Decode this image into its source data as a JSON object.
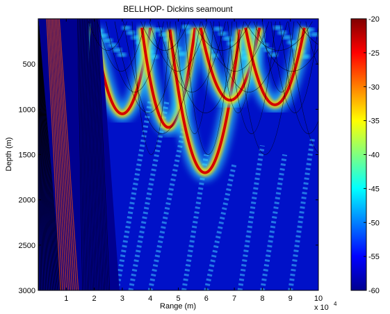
{
  "chart_data": {
    "type": "heatmap",
    "title": "BELLHOP- Dickins seamount",
    "xlabel": "Range (m)",
    "ylabel": "Depth (m)",
    "x_multiplier": "x 10",
    "x_multiplier_exponent": "4",
    "xlim": [
      0,
      100000
    ],
    "ylim": [
      0,
      3000
    ],
    "y_reversed": true,
    "x_ticks": [
      10000,
      20000,
      30000,
      40000,
      50000,
      60000,
      70000,
      80000,
      90000,
      100000
    ],
    "x_tick_labels": [
      "1",
      "2",
      "3",
      "4",
      "5",
      "6",
      "7",
      "8",
      "9",
      "10"
    ],
    "y_ticks": [
      500,
      1000,
      1500,
      2000,
      2500,
      3000
    ],
    "y_tick_labels": [
      "500",
      "1000",
      "1500",
      "2000",
      "2500",
      "3000"
    ],
    "colorbar": {
      "range": [
        -60,
        -20
      ],
      "ticks": [
        -20,
        -25,
        -30,
        -35,
        -40,
        -45,
        -50,
        -55,
        -60
      ],
      "tick_labels": [
        "-20",
        "-25",
        "-30",
        "-35",
        "-40",
        "-45",
        "-50",
        "-55",
        "-60"
      ],
      "colormap": "jet"
    },
    "seamount_profile": [
      [
        0,
        3000
      ],
      [
        6000,
        0
      ],
      [
        9000,
        0
      ],
      [
        13000,
        3000
      ],
      [
        19000,
        0
      ],
      [
        22000,
        0
      ],
      [
        29000,
        3000
      ]
    ],
    "convergence_arcs": [
      {
        "x_start": 20000,
        "x_end": 40000,
        "depth_min": 100,
        "depth_max": 1050
      },
      {
        "x_start": 37000,
        "x_end": 56000,
        "depth_min": 100,
        "depth_max": 1200
      },
      {
        "x_start": 47000,
        "x_end": 72000,
        "depth_min": 120,
        "depth_max": 1700
      },
      {
        "x_start": 58000,
        "x_end": 79000,
        "depth_min": 100,
        "depth_max": 900
      },
      {
        "x_start": 74000,
        "x_end": 95000,
        "depth_min": 100,
        "depth_max": 950
      }
    ],
    "colors": {
      "background": "#00008f",
      "high_intensity": "#c80000",
      "ray_lines": "#000000"
    }
  }
}
